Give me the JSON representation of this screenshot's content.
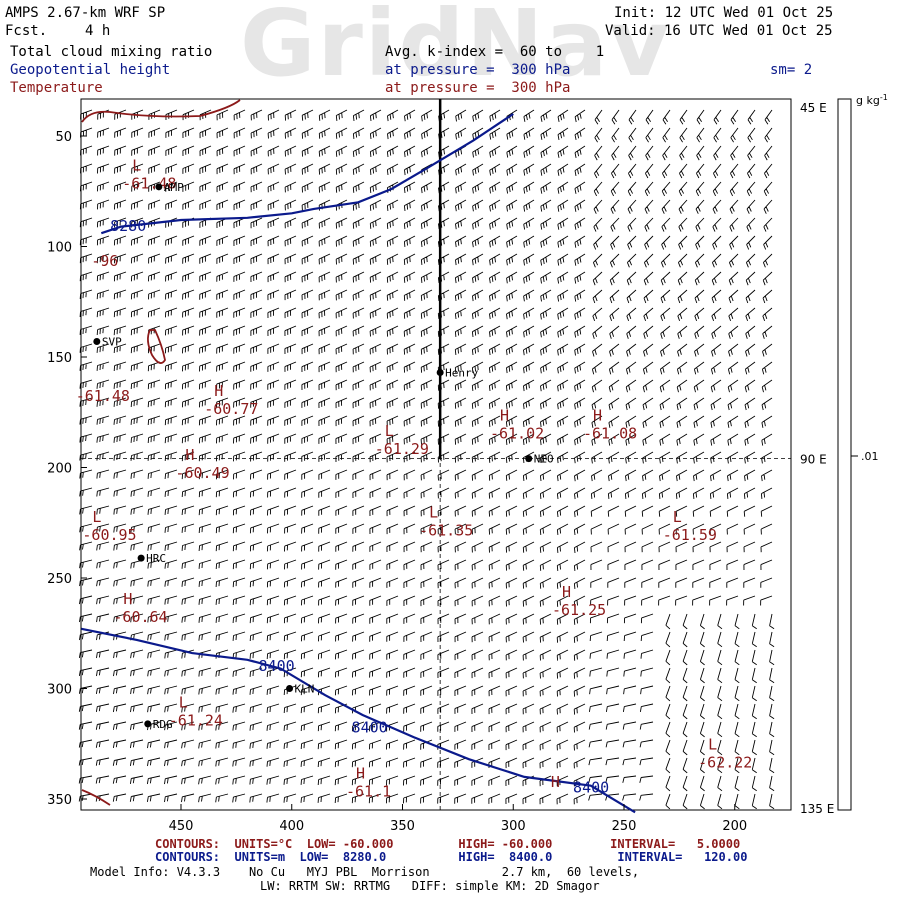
{
  "watermark": "GridNav",
  "header": {
    "model_title": "AMPS 2.67-km WRF SP",
    "fcst_label": "Fcst.",
    "fcst_value": "4 h",
    "init": "Init: 12 UTC Wed 01 Oct 25",
    "valid": "Valid: 16 UTC Wed 01 Oct 25",
    "fields": [
      {
        "text": "Total cloud mixing ratio",
        "color": "#000000"
      },
      {
        "text": "Geopotential height",
        "color": "#0b1a8c"
      },
      {
        "text": "Temperature",
        "color": "#8c1a1a"
      }
    ],
    "kindex": "Avg. k-index =  60 to    1",
    "pressure_blue": "at pressure =  300 hPa",
    "pressure_red": "at pressure =  300 hPa",
    "smoothing": "sm= 2"
  },
  "axes": {
    "y_ticks": [
      "50",
      "100",
      "150",
      "200",
      "250",
      "300",
      "350"
    ],
    "x_ticks": [
      "450",
      "400",
      "350",
      "300",
      "250",
      "200"
    ],
    "right_labels": [
      "45 E",
      "90 E",
      "135 E"
    ],
    "colorbar_unit": "g kg",
    "colorbar_unit_sup": "-1",
    "colorbar_value": ".01"
  },
  "stations": [
    {
      "name": "AMP",
      "x": 460,
      "y": 73
    },
    {
      "name": "SVP",
      "x": 488,
      "y": 143
    },
    {
      "name": "Henry",
      "x": 333,
      "y": 157
    },
    {
      "name": "NEO",
      "x": 293,
      "y": 196
    },
    {
      "name": "HRC",
      "x": 468,
      "y": 241
    },
    {
      "name": "KLN",
      "x": 401,
      "y": 300
    },
    {
      "name": "RDG",
      "x": 465,
      "y": 316
    }
  ],
  "temp_labels": [
    {
      "mark": "L",
      "value": "-61.48",
      "x": 472,
      "y": 72
    },
    {
      "mark": "",
      "value": "-96",
      "x": 486,
      "y": 107
    },
    {
      "mark": "",
      "value": "-61.48",
      "x": 493,
      "y": 168
    },
    {
      "mark": "H",
      "value": "-60.77",
      "x": 435,
      "y": 174
    },
    {
      "mark": "H",
      "value": "-61.02",
      "x": 306,
      "y": 185
    },
    {
      "mark": "H",
      "value": "-61.08",
      "x": 264,
      "y": 185
    },
    {
      "mark": "L",
      "value": "-61.29",
      "x": 358,
      "y": 192
    },
    {
      "mark": "H",
      "value": "-60.49",
      "x": 448,
      "y": 203
    },
    {
      "mark": "L",
      "value": "-60.95",
      "x": 490,
      "y": 231
    },
    {
      "mark": "L",
      "value": "-61.35",
      "x": 338,
      "y": 229
    },
    {
      "mark": "L",
      "value": "-61.59",
      "x": 228,
      "y": 231
    },
    {
      "mark": "H",
      "value": "-61.25",
      "x": 278,
      "y": 265
    },
    {
      "mark": "H",
      "value": "-60.64",
      "x": 476,
      "y": 268
    },
    {
      "mark": "L",
      "value": "-61.24",
      "x": 451,
      "y": 315
    },
    {
      "mark": "L",
      "value": "-62.22",
      "x": 212,
      "y": 334
    },
    {
      "mark": "H",
      "value": "-61.1",
      "x": 371,
      "y": 347
    },
    {
      "mark": "H",
      "value": "",
      "x": 283,
      "y": 351
    }
  ],
  "height_labels": [
    {
      "value": "8280",
      "x": 482,
      "y": 93
    },
    {
      "value": "8400",
      "x": 415,
      "y": 292
    },
    {
      "value": "8400",
      "x": 373,
      "y": 320
    },
    {
      "value": "8400",
      "x": 273,
      "y": 347
    }
  ],
  "height_contours": [
    {
      "value": "8280",
      "points": [
        [
          486,
          94
        ],
        [
          477,
          91
        ],
        [
          450,
          88
        ],
        [
          420,
          87
        ],
        [
          400,
          85
        ],
        [
          390,
          83
        ],
        [
          370,
          80
        ],
        [
          355,
          74
        ],
        [
          338,
          64
        ],
        [
          318,
          52
        ],
        [
          300,
          40
        ]
      ]
    },
    {
      "value": "8400",
      "points": [
        [
          495,
          273
        ],
        [
          470,
          278
        ],
        [
          445,
          284
        ],
        [
          420,
          287
        ],
        [
          405,
          291
        ],
        [
          385,
          303
        ],
        [
          368,
          312
        ],
        [
          345,
          322
        ],
        [
          320,
          332
        ],
        [
          295,
          340
        ],
        [
          265,
          344
        ],
        [
          245,
          356
        ]
      ]
    }
  ],
  "footer": {
    "red_line": "CONTOURS:  UNITS=°C  LOW= -60.000         HIGH= -60.000        INTERVAL=   5.0000",
    "blue_line": "CONTOURS:  UNITS=m  LOW=  8280.0          HIGH=  8400.0         INTERVAL=   120.00",
    "model_info": "Model Info: V4.3.3    No Cu   MYJ PBL  Morrison          2.7 km,  60 levels,",
    "model_info2": "LW: RRTM SW: RRTMG   DIFF: simple KM: 2D Smagor"
  },
  "colors": {
    "temperature": "#8c1a1a",
    "height": "#0b1a8c",
    "barb": "#000000"
  }
}
